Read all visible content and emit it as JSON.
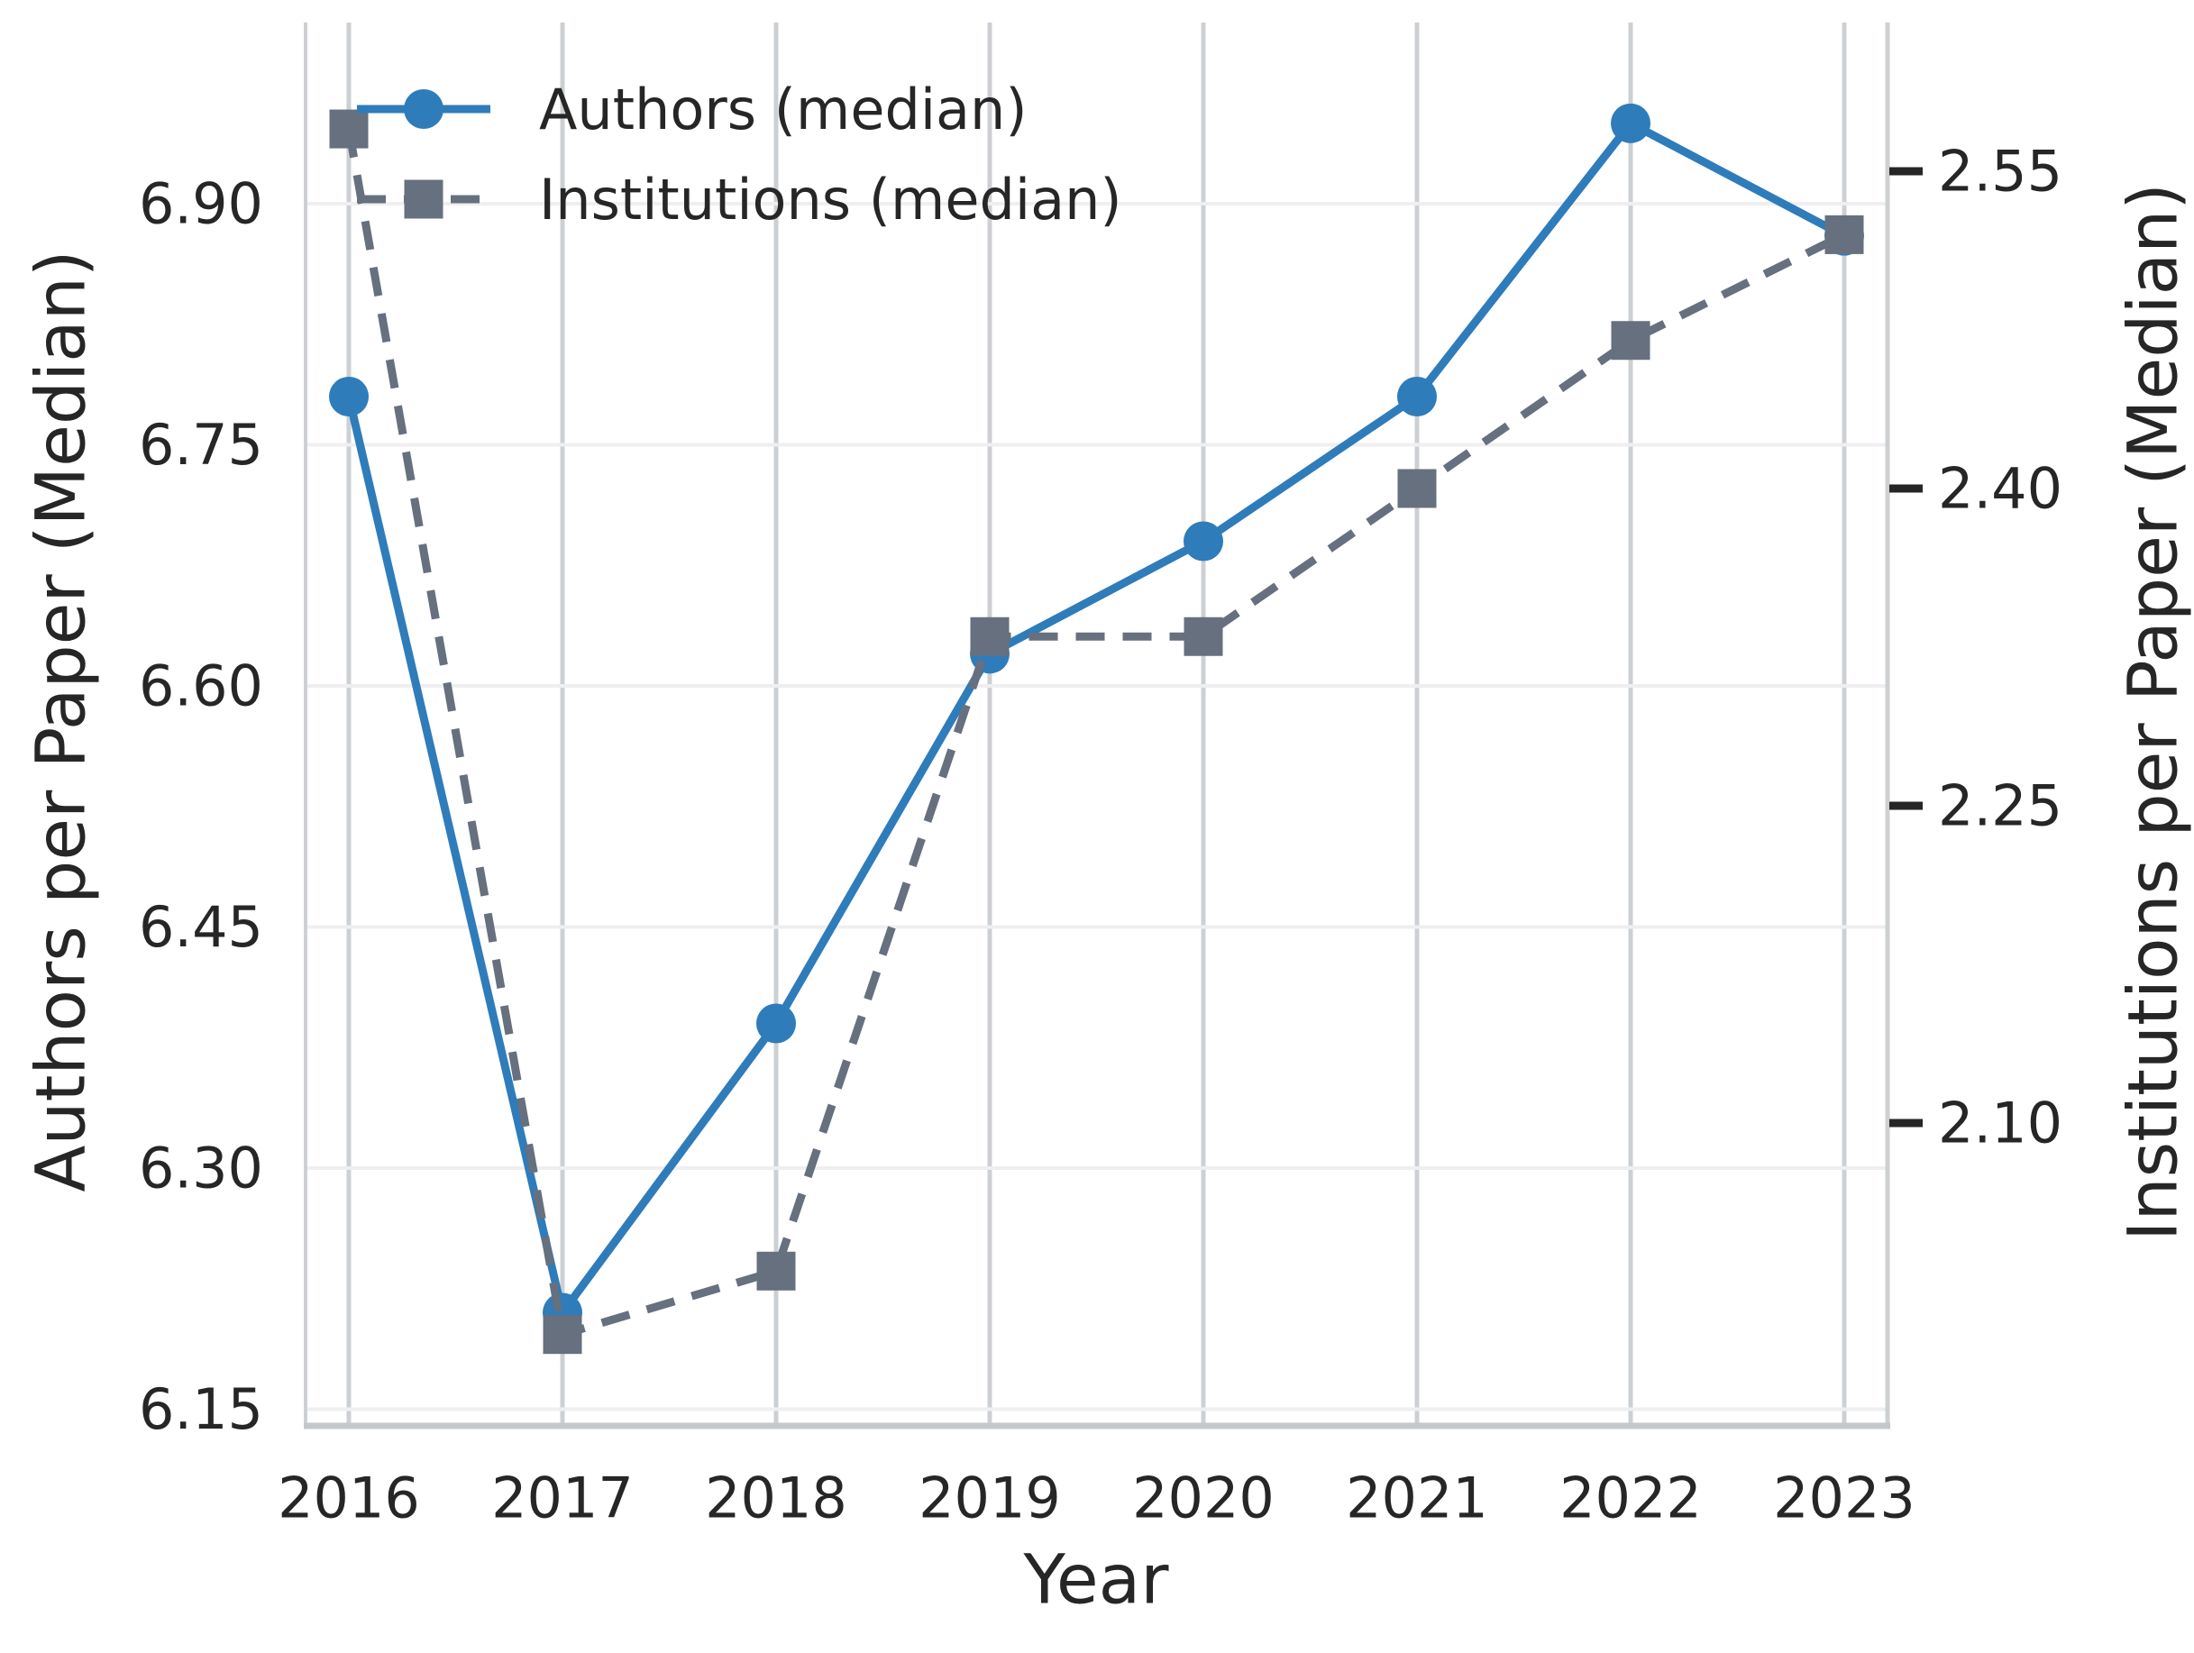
{
  "chart_data": {
    "type": "line",
    "title": "",
    "x_axis": {
      "label": "Year",
      "ticks": [
        2016,
        2017,
        2018,
        2019,
        2020,
        2021,
        2022,
        2023
      ]
    },
    "left_axis": {
      "label": "Authors per Paper (Median)",
      "ticks": [
        6.15,
        6.3,
        6.45,
        6.6,
        6.75,
        6.9
      ],
      "range": [
        6.14,
        7.01
      ]
    },
    "right_axis": {
      "label": "Institutions per Paper (Median)",
      "ticks": [
        2.1,
        2.25,
        2.4,
        2.55
      ],
      "range": [
        1.95,
        2.62
      ]
    },
    "grid": true,
    "legend": {
      "position": "upper left",
      "entries": [
        "Authors (median)",
        "Institutions (median)"
      ]
    },
    "series": [
      {
        "name": "Authors (median)",
        "axis": "left",
        "color": "#2F7CBA",
        "marker": "circle",
        "linestyle": "solid",
        "values": [
          6.78,
          6.21,
          6.39,
          6.62,
          6.69,
          6.78,
          6.95,
          6.88
        ]
      },
      {
        "name": "Institutions (median)",
        "axis": "right",
        "color": "#66707E",
        "marker": "square",
        "linestyle": "dashed",
        "values": [
          2.57,
          2.0,
          2.03,
          2.33,
          2.33,
          2.4,
          2.47,
          2.52
        ]
      }
    ],
    "style": {
      "grid_x_color": "#cdd0d3",
      "grid_y_color": "#efeff1",
      "spine_color": "#cdd0d3",
      "bottom_spine_color": "#c5c7ca",
      "text_color": "#262626"
    }
  }
}
